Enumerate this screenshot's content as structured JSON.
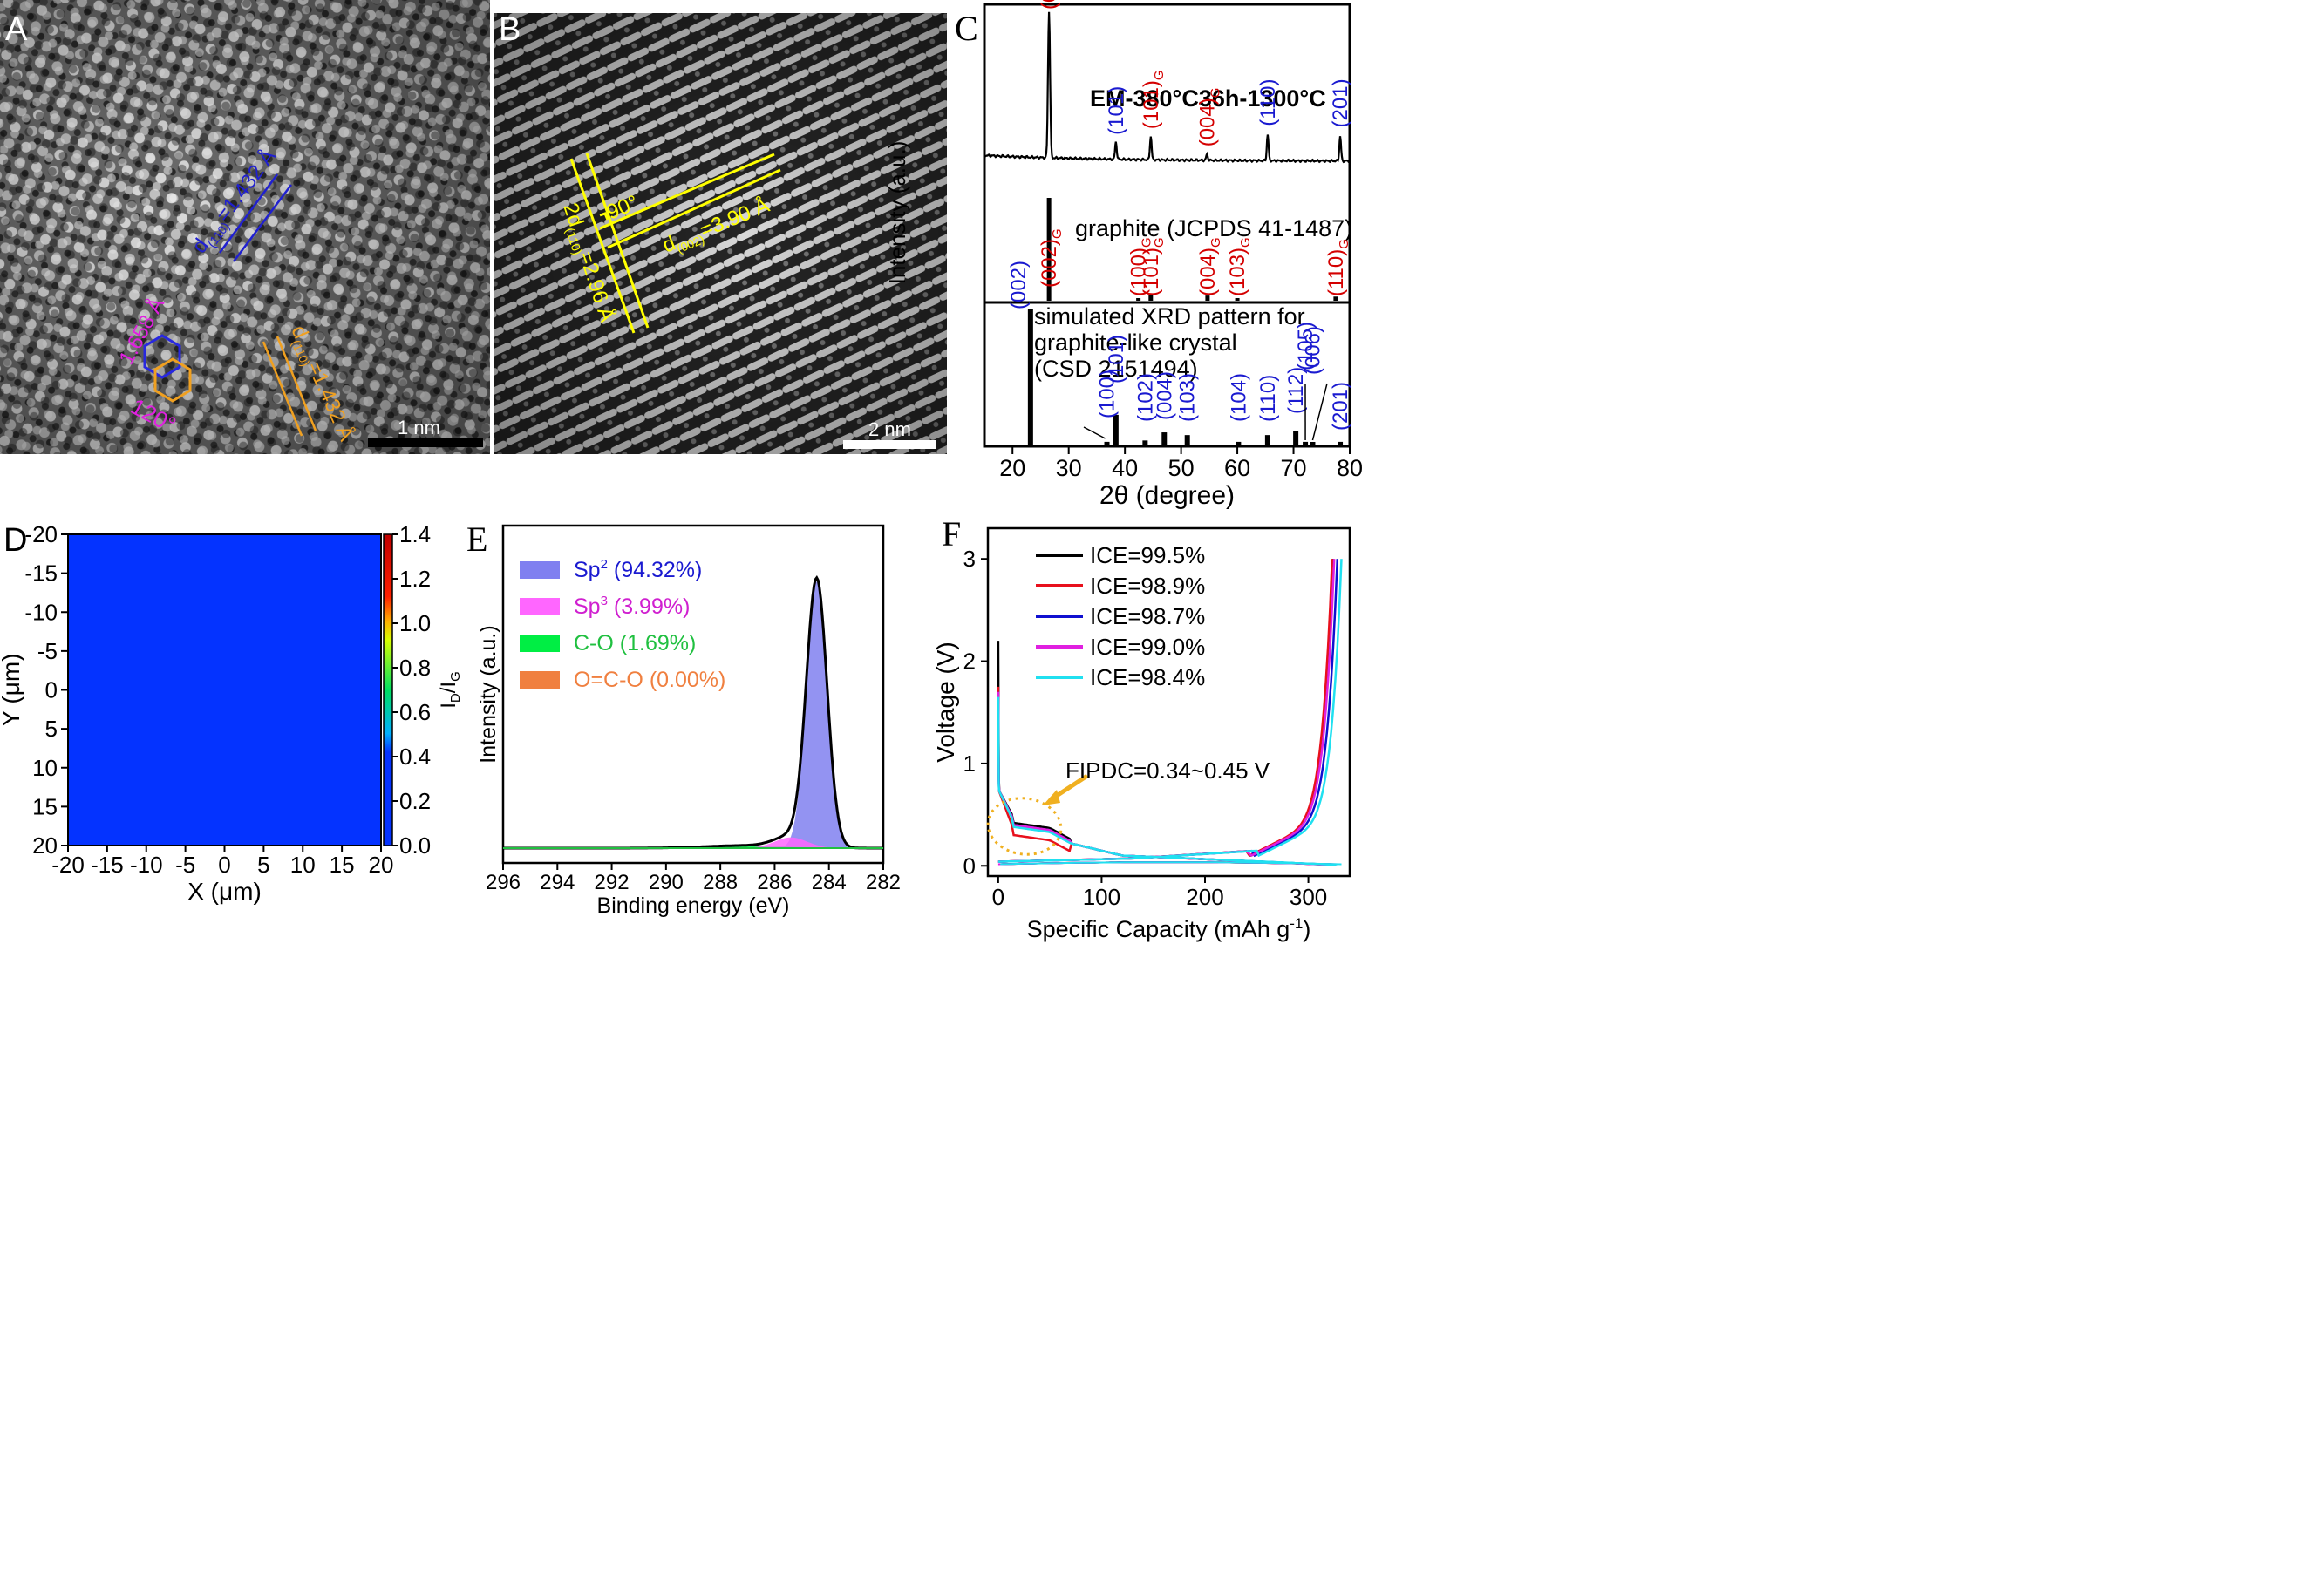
{
  "panel_letters": {
    "A": "A",
    "B": "B",
    "C": "C",
    "D": "D",
    "E": "E",
    "F": "F"
  },
  "panel_a": {
    "scale_bar": "1 nm",
    "d_blue": "=1.432 Å",
    "d_orange": "=1.432 Å",
    "d_sub": "(110)",
    "d_sym": "d",
    "hex_len": "1.658 Å",
    "angle": "120°"
  },
  "panel_b": {
    "scale_bar": "2 nm",
    "d002": "=3.90 Å",
    "d002_sub": "(002)",
    "d2_prefix": "2d",
    "d2_sub": "(110)",
    "d2": "=2.96 Å",
    "angle": "90°"
  },
  "chart_data": [
    {
      "panel": "C",
      "type": "line",
      "title": "EM-380°C36h-1300°C",
      "xlabel": "2θ (degree)",
      "ylabel": "Intensity (a.u.)",
      "xlim": [
        15,
        80
      ],
      "x_ticks": [
        20,
        30,
        40,
        50,
        60,
        70,
        80
      ],
      "series": [
        {
          "color": "#000000",
          "peaks_2theta": [
            26.5,
            38.4,
            44.6,
            54.6,
            65.4,
            78.3
          ],
          "peak_heights": [
            1.0,
            0.12,
            0.16,
            0.04,
            0.18,
            0.17
          ],
          "peak_labels": [
            {
              "x": 26.5,
              "text": "(002)",
              "sub": "G",
              "color": "#d40000"
            },
            {
              "x": 38.4,
              "text": "(101)",
              "sub": "",
              "color": "#1a1ad0"
            },
            {
              "x": 44.6,
              "text": "(101)",
              "sub": "G",
              "color": "#d40000"
            },
            {
              "x": 54.6,
              "text": "(004)",
              "sub": "G",
              "color": "#d40000"
            },
            {
              "x": 65.4,
              "text": "(110)",
              "sub": "",
              "color": "#1a1ad0"
            },
            {
              "x": 78.3,
              "text": "(201)",
              "sub": "",
              "color": "#1a1ad0"
            }
          ]
        },
        {
          "name": "graphite (JCPDS 41-1487)",
          "type": "sticks",
          "x": [
            26.5,
            42.4,
            44.6,
            54.7,
            60.0,
            77.5
          ],
          "heights": [
            1.0,
            0.02,
            0.06,
            0.05,
            0.01,
            0.04
          ],
          "labels": [
            {
              "x": 26.5,
              "text": "(002)",
              "sub": "G"
            },
            {
              "x": 42.4,
              "text": "(100)",
              "sub": "G"
            },
            {
              "x": 44.6,
              "text": "(101)",
              "sub": "G"
            },
            {
              "x": 54.7,
              "text": "(004)",
              "sub": "G"
            },
            {
              "x": 60.0,
              "text": "(103)",
              "sub": "G"
            },
            {
              "x": 77.5,
              "text": "(110)",
              "sub": "G"
            }
          ]
        },
        {
          "name": "simulated XRD pattern for graphite-like crystal (CSD 2151494)",
          "name_lines": [
            "simulated XRD pattern for",
            "graphite-like crystal",
            "(CSD 2151494)"
          ],
          "type": "sticks",
          "x": [
            23.2,
            36.8,
            38.4,
            43.6,
            47.0,
            51.1,
            60.2,
            65.4,
            70.4,
            72.1,
            73.4,
            78.3
          ],
          "heights": [
            1.0,
            0.02,
            0.22,
            0.03,
            0.09,
            0.07,
            0.02,
            0.07,
            0.1,
            0.02,
            0.01,
            0.02
          ],
          "labels": [
            {
              "x": 23.2,
              "text": "(002)"
            },
            {
              "x": 36.8,
              "text": "(100)"
            },
            {
              "x": 38.4,
              "text": "(101)"
            },
            {
              "x": 43.6,
              "text": "(102)"
            },
            {
              "x": 47.0,
              "text": "(004)"
            },
            {
              "x": 51.1,
              "text": "(103)"
            },
            {
              "x": 60.2,
              "text": "(104)"
            },
            {
              "x": 65.4,
              "text": "(110)"
            },
            {
              "x": 70.4,
              "text": "(112)"
            },
            {
              "x": 72.1,
              "text": "(105)"
            },
            {
              "x": 73.4,
              "text": "(006)"
            },
            {
              "x": 78.3,
              "text": "(201)"
            }
          ]
        }
      ]
    },
    {
      "panel": "D",
      "type": "heatmap",
      "xlabel": "X (μm)",
      "ylabel": "Y (μm)",
      "xlim": [
        -20,
        20
      ],
      "ylim": [
        -20,
        20
      ],
      "x_ticks": [
        -20,
        -15,
        -10,
        -5,
        0,
        5,
        10,
        15,
        20
      ],
      "y_ticks": [
        -20,
        -15,
        -10,
        -5,
        0,
        5,
        10,
        15,
        20
      ],
      "colorbar_label": "ID/IG",
      "colorbar_range": [
        0.0,
        1.4
      ],
      "colorbar_ticks": [
        0.0,
        0.2,
        0.4,
        0.6,
        0.8,
        1.0,
        1.2,
        1.4
      ],
      "value_everywhere": 0.1,
      "fill_color": "#0433ff"
    },
    {
      "panel": "E",
      "type": "area",
      "xlabel": "Binding energy (eV)",
      "ylabel": "Intensity (a.u.)",
      "xlim": [
        296,
        282
      ],
      "x_ticks": [
        296,
        294,
        292,
        290,
        288,
        286,
        284,
        282
      ],
      "series": [
        {
          "name": "Sp2 (94.32%)",
          "label": "Sp",
          "sup": "2",
          "rest": " (94.32%)",
          "color": "#8080f0",
          "text_color": "#1a1ad0",
          "center": 284.45,
          "height": 1.0,
          "width": 0.38
        },
        {
          "name": "Sp3 (3.99%)",
          "label": "Sp",
          "sup": "3",
          "rest": " (3.99%)",
          "color": "#ff66ff",
          "text_color": "#d020d0",
          "center": 285.4,
          "height": 0.04,
          "width": 0.6
        },
        {
          "name": "C-O (1.69%)",
          "label": "C-O (1.69%)",
          "sup": "",
          "rest": "",
          "color": "#00ee44",
          "text_color": "#20c040",
          "center": 287.0,
          "height": 0.01,
          "width": 1.5
        },
        {
          "name": "O=C-O (0.00%)",
          "label": "O=C-O (0.00%)",
          "sup": "",
          "rest": "",
          "color": "#f08040",
          "text_color": "#f08040",
          "center": 289.0,
          "height": 0.0,
          "width": 1.0
        }
      ]
    },
    {
      "panel": "F",
      "type": "line",
      "xlabel": "Specific Capacity (mAh g-1)",
      "xlabel_parts": [
        "Specific Capacity (mAh g",
        "-1",
        ")"
      ],
      "ylabel": "Voltage (V)",
      "xlim": [
        -10,
        340
      ],
      "ylim": [
        -0.1,
        3.3
      ],
      "x_ticks": [
        0,
        100,
        200,
        300
      ],
      "y_ticks": [
        0,
        1,
        2,
        3
      ],
      "annotation": "FIPDC=0.34~0.45 V",
      "series": [
        {
          "name": "ICE=99.5%",
          "color": "#000000",
          "charge_end": 322,
          "discharge_end": 324,
          "plateau": 0.42,
          "spike": 2.2
        },
        {
          "name": "ICE=98.9%",
          "color": "#e8101c",
          "charge_end": 320,
          "discharge_end": 323,
          "plateau": 0.3,
          "spike": 1.75
        },
        {
          "name": "ICE=98.7%",
          "color": "#1010d0",
          "charge_end": 324,
          "discharge_end": 328,
          "plateau": 0.4,
          "spike": 1.7
        },
        {
          "name": "ICE=99.0%",
          "color": "#e020e0",
          "charge_end": 320,
          "discharge_end": 325,
          "plateau": 0.4,
          "spike": 1.7
        },
        {
          "name": "ICE=98.4%",
          "color": "#20e0f0",
          "charge_end": 327,
          "discharge_end": 332,
          "plateau": 0.38,
          "spike": 1.65
        }
      ]
    }
  ]
}
